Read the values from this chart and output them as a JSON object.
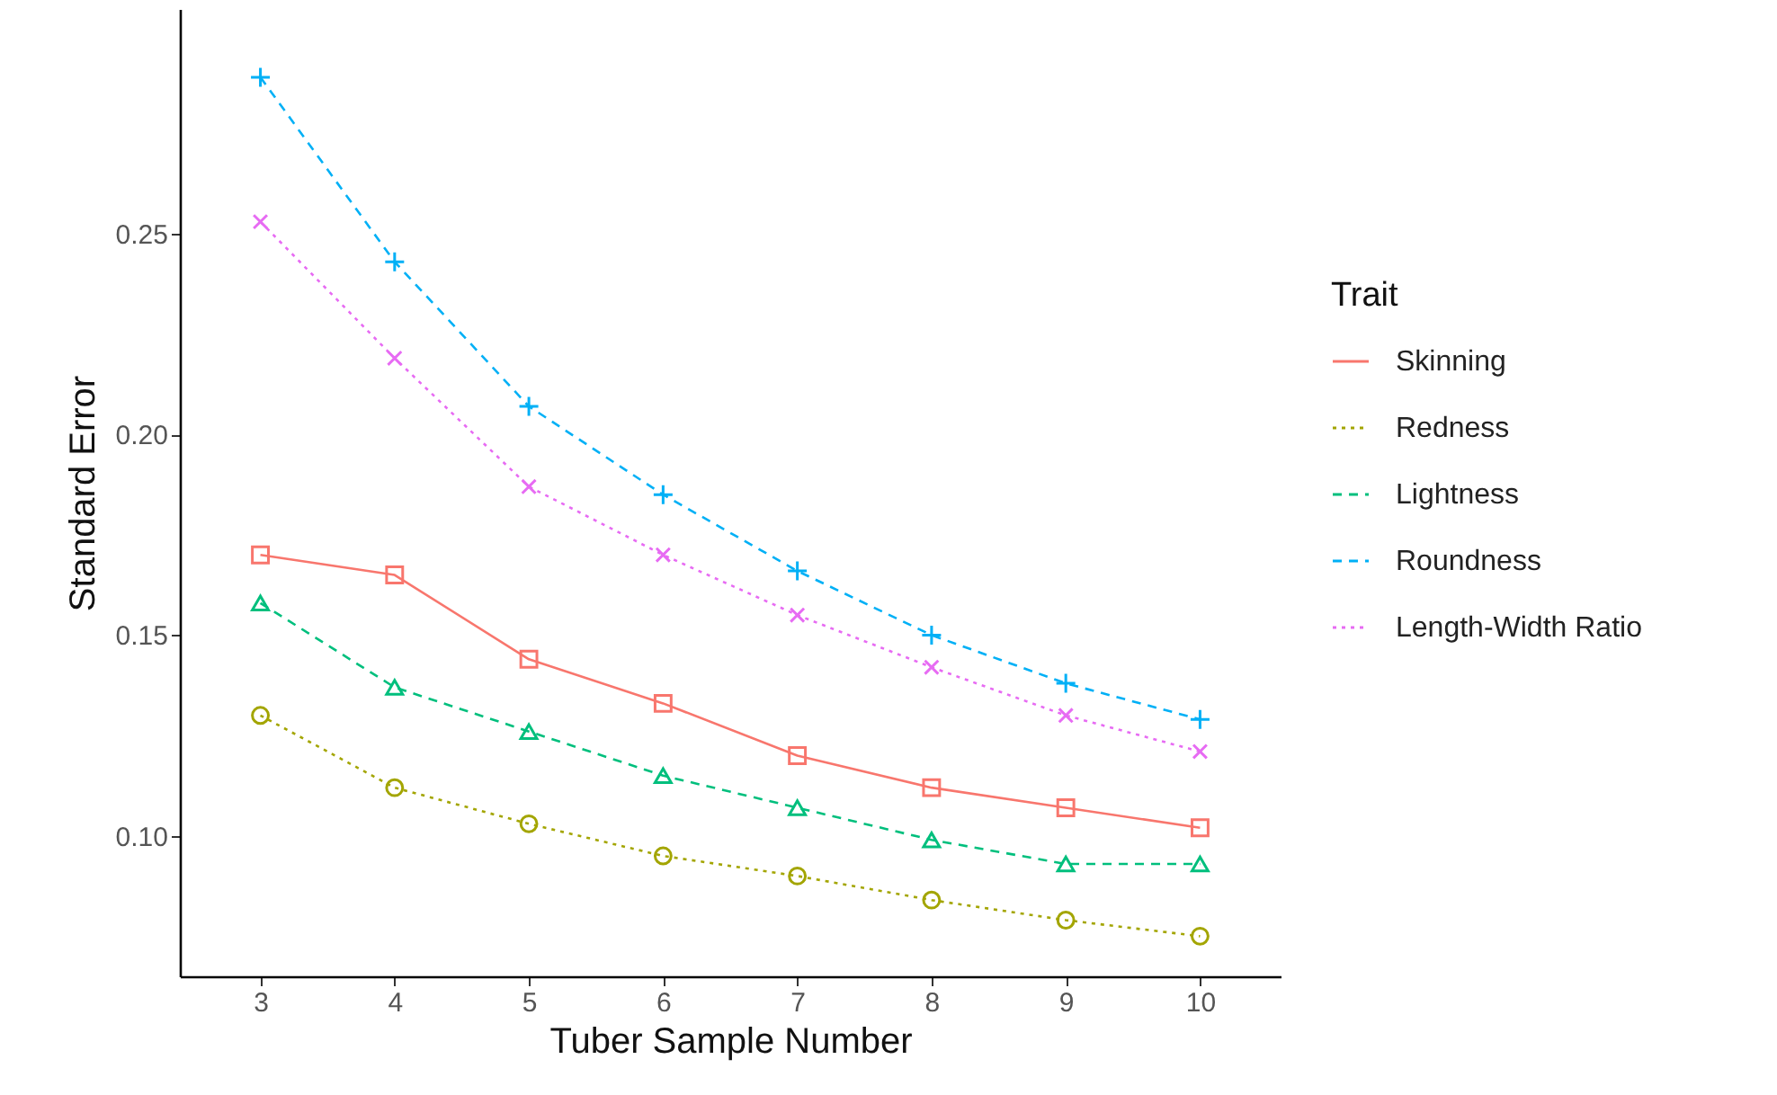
{
  "chart_data": {
    "type": "line",
    "xlabel": "Tuber Sample Number",
    "ylabel": "Standard Error",
    "legend_title": "Trait",
    "legend": "right",
    "x": [
      3,
      4,
      5,
      6,
      7,
      8,
      9,
      10
    ],
    "xlim": [
      2.4,
      10.6
    ],
    "xticks": [
      3,
      4,
      5,
      6,
      7,
      8,
      9,
      10
    ],
    "ylim": [
      0.065,
      0.306
    ],
    "yticks": [
      {
        "value": 0.1,
        "label": "0.10"
      },
      {
        "value": 0.15,
        "label": "0.15"
      },
      {
        "value": 0.2,
        "label": "0.20"
      },
      {
        "value": 0.25,
        "label": "0.25"
      }
    ],
    "grid": false,
    "series": [
      {
        "name": "Skinning",
        "color": "#f8766d",
        "marker": "square",
        "line_style": "solid",
        "values": [
          0.17,
          0.165,
          0.144,
          0.133,
          0.12,
          0.112,
          0.107,
          0.102
        ]
      },
      {
        "name": "Redness",
        "color": "#a3a500",
        "marker": "circle",
        "line_style": "dotted",
        "values": [
          0.13,
          0.112,
          0.103,
          0.095,
          0.09,
          0.084,
          0.079,
          0.075
        ]
      },
      {
        "name": "Lightness",
        "color": "#00bf7d",
        "marker": "triangle",
        "line_style": "dashed",
        "values": [
          0.158,
          0.137,
          0.126,
          0.115,
          0.107,
          0.099,
          0.093,
          0.093
        ]
      },
      {
        "name": "Roundness",
        "color": "#00b0f6",
        "marker": "cross",
        "line_style": "dashed",
        "values": [
          0.289,
          0.243,
          0.207,
          0.185,
          0.166,
          0.15,
          0.138,
          0.129
        ]
      },
      {
        "name": "Length-Width Ratio",
        "color": "#e76bf3",
        "marker": "x",
        "line_style": "dotted",
        "values": [
          0.253,
          0.219,
          0.187,
          0.17,
          0.155,
          0.142,
          0.13,
          0.121
        ]
      }
    ]
  }
}
